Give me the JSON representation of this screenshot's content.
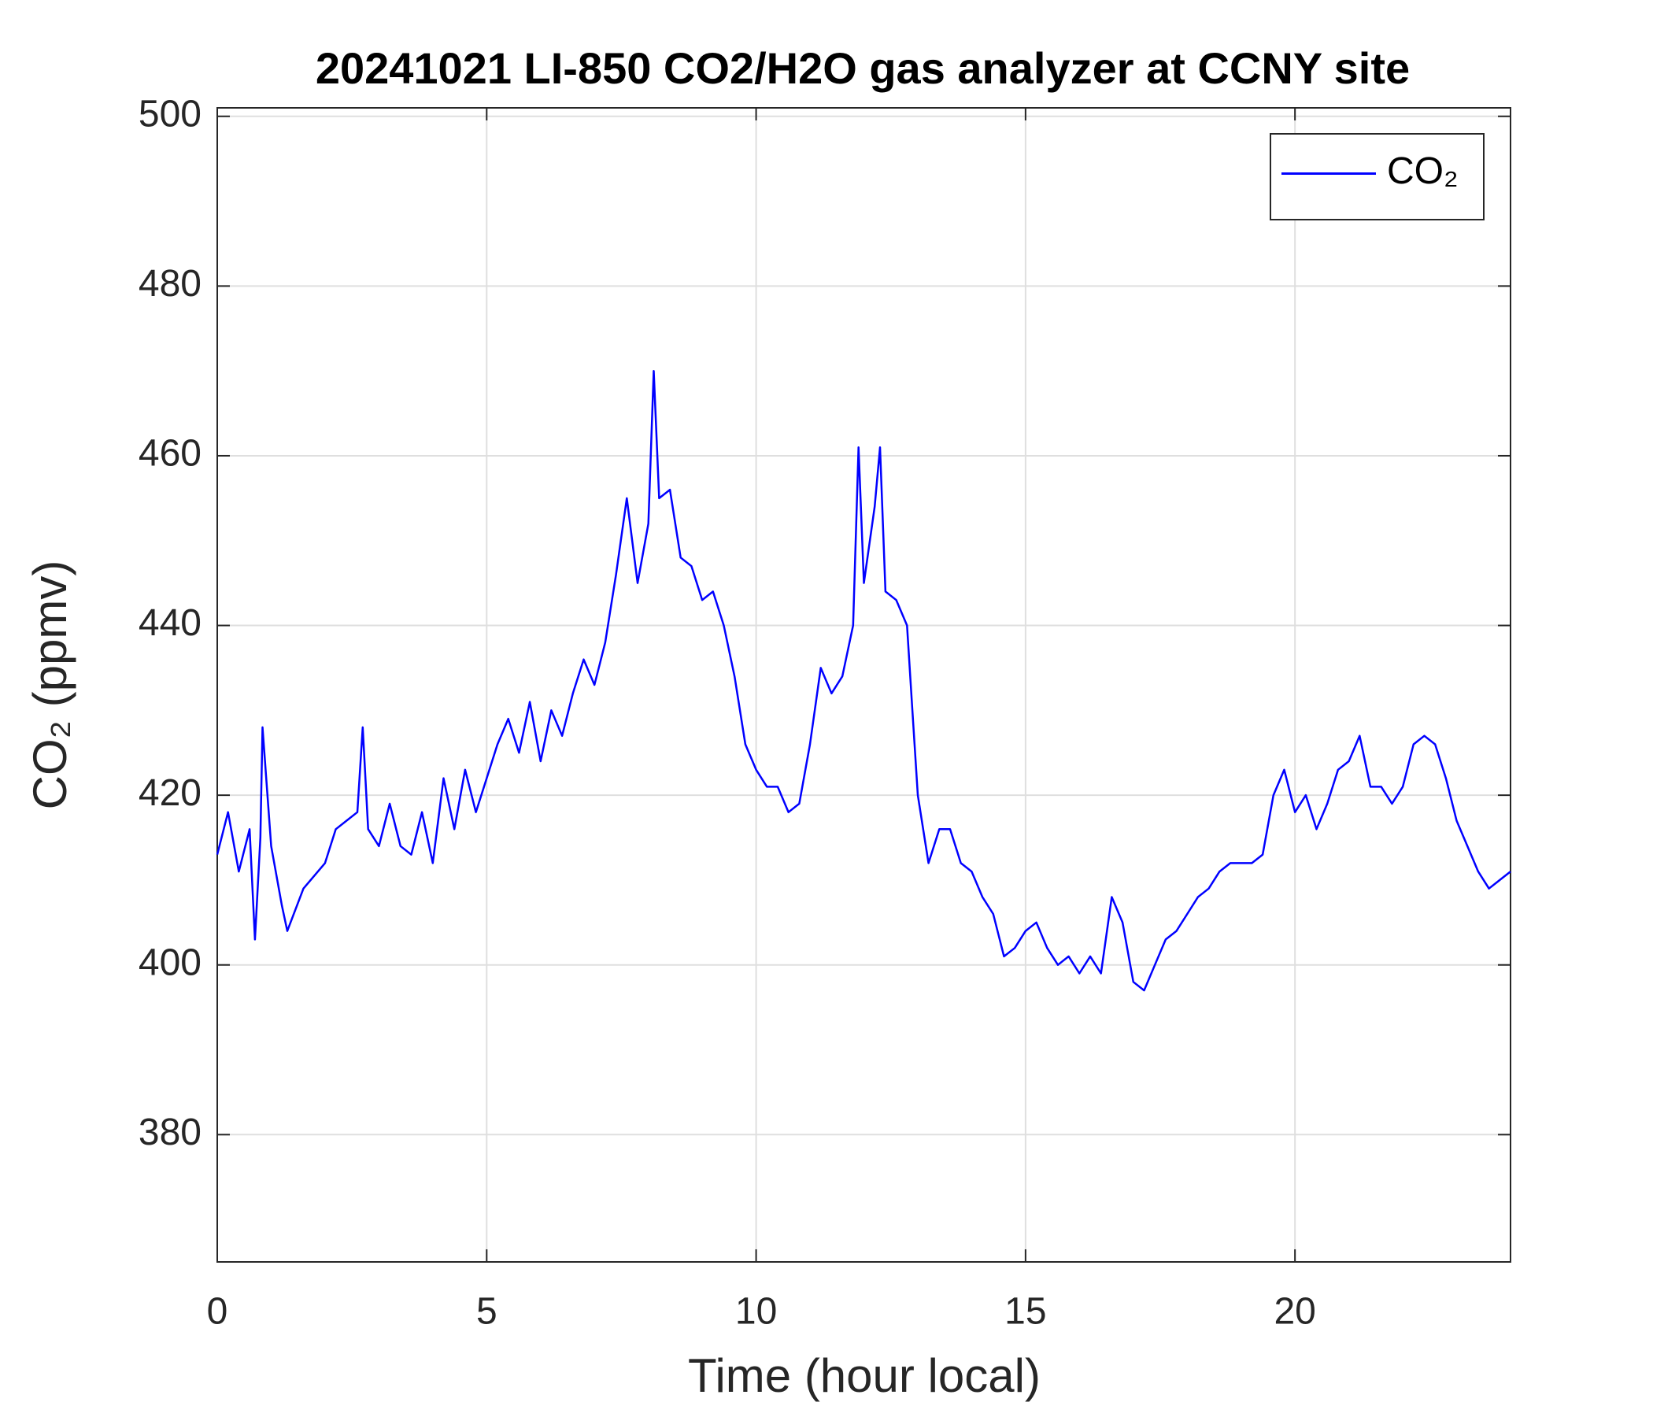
{
  "chart_data": {
    "type": "line",
    "title": "20241021 LI-850 CO2/H2O gas analyzer at CCNY site",
    "x_label": "Time (hour local)",
    "y_label": "CO₂ (ppmv)",
    "x": [
      0,
      0.2,
      0.4,
      0.6,
      0.7,
      0.8,
      0.84,
      1.0,
      1.2,
      1.3,
      1.6,
      2.0,
      2.2,
      2.4,
      2.6,
      2.7,
      2.8,
      3.0,
      3.2,
      3.4,
      3.6,
      3.8,
      4.0,
      4.2,
      4.4,
      4.6,
      4.8,
      5.0,
      5.2,
      5.4,
      5.6,
      5.8,
      6.0,
      6.2,
      6.4,
      6.6,
      6.8,
      7.0,
      7.2,
      7.4,
      7.6,
      7.8,
      8.0,
      8.1,
      8.2,
      8.4,
      8.6,
      8.8,
      9.0,
      9.2,
      9.4,
      9.6,
      9.8,
      10.0,
      10.2,
      10.4,
      10.6,
      10.8,
      11.0,
      11.2,
      11.4,
      11.6,
      11.8,
      11.9,
      12.0,
      12.2,
      12.3,
      12.4,
      12.6,
      12.8,
      12.9,
      13.0,
      13.2,
      13.4,
      13.6,
      13.8,
      14.0,
      14.2,
      14.4,
      14.6,
      14.8,
      15.0,
      15.2,
      15.4,
      15.6,
      15.8,
      16.0,
      16.2,
      16.4,
      16.6,
      16.8,
      17.0,
      17.2,
      17.4,
      17.6,
      17.8,
      18.0,
      18.2,
      18.4,
      18.6,
      18.8,
      19.0,
      19.2,
      19.4,
      19.6,
      19.8,
      20.0,
      20.2,
      20.4,
      20.6,
      20.8,
      21.0,
      21.2,
      21.4,
      21.6,
      21.8,
      22.0,
      22.2,
      22.4,
      22.6,
      22.8,
      23.0,
      23.2,
      23.4,
      23.6,
      23.8,
      24.0
    ],
    "series": [
      {
        "name": "CO₂",
        "color": "#0000ff",
        "values": [
          413,
          418,
          411,
          416,
          403,
          415,
          428,
          414,
          407,
          404,
          409,
          412,
          416,
          417,
          418,
          428,
          416,
          414,
          419,
          414,
          413,
          418,
          412,
          422,
          416,
          423,
          418,
          422,
          426,
          429,
          425,
          431,
          424,
          430,
          427,
          432,
          436,
          433,
          438,
          446,
          455,
          445,
          452,
          470,
          455,
          456,
          448,
          447,
          443,
          444,
          440,
          434,
          426,
          423,
          421,
          421,
          418,
          419,
          426,
          435,
          432,
          434,
          440,
          461,
          445,
          454,
          461,
          444,
          443,
          440,
          430,
          420,
          412,
          416,
          416,
          412,
          411,
          408,
          406,
          401,
          402,
          404,
          405,
          402,
          400,
          401,
          399,
          401,
          399,
          408,
          405,
          398,
          397,
          400,
          403,
          404,
          406,
          408,
          409,
          411,
          412,
          412,
          412,
          413,
          420,
          423,
          418,
          420,
          416,
          419,
          423,
          424,
          427,
          421,
          421,
          419,
          421,
          426,
          427,
          426,
          422,
          417,
          414,
          411,
          409,
          410,
          411
        ]
      }
    ],
    "xlim": [
      0,
      24
    ],
    "xticks": [
      0,
      5,
      10,
      15,
      20
    ],
    "ylim": [
      365,
      501
    ],
    "yticks": [
      380,
      400,
      420,
      440,
      460,
      480,
      500
    ],
    "grid": true,
    "legend": "northeast"
  }
}
